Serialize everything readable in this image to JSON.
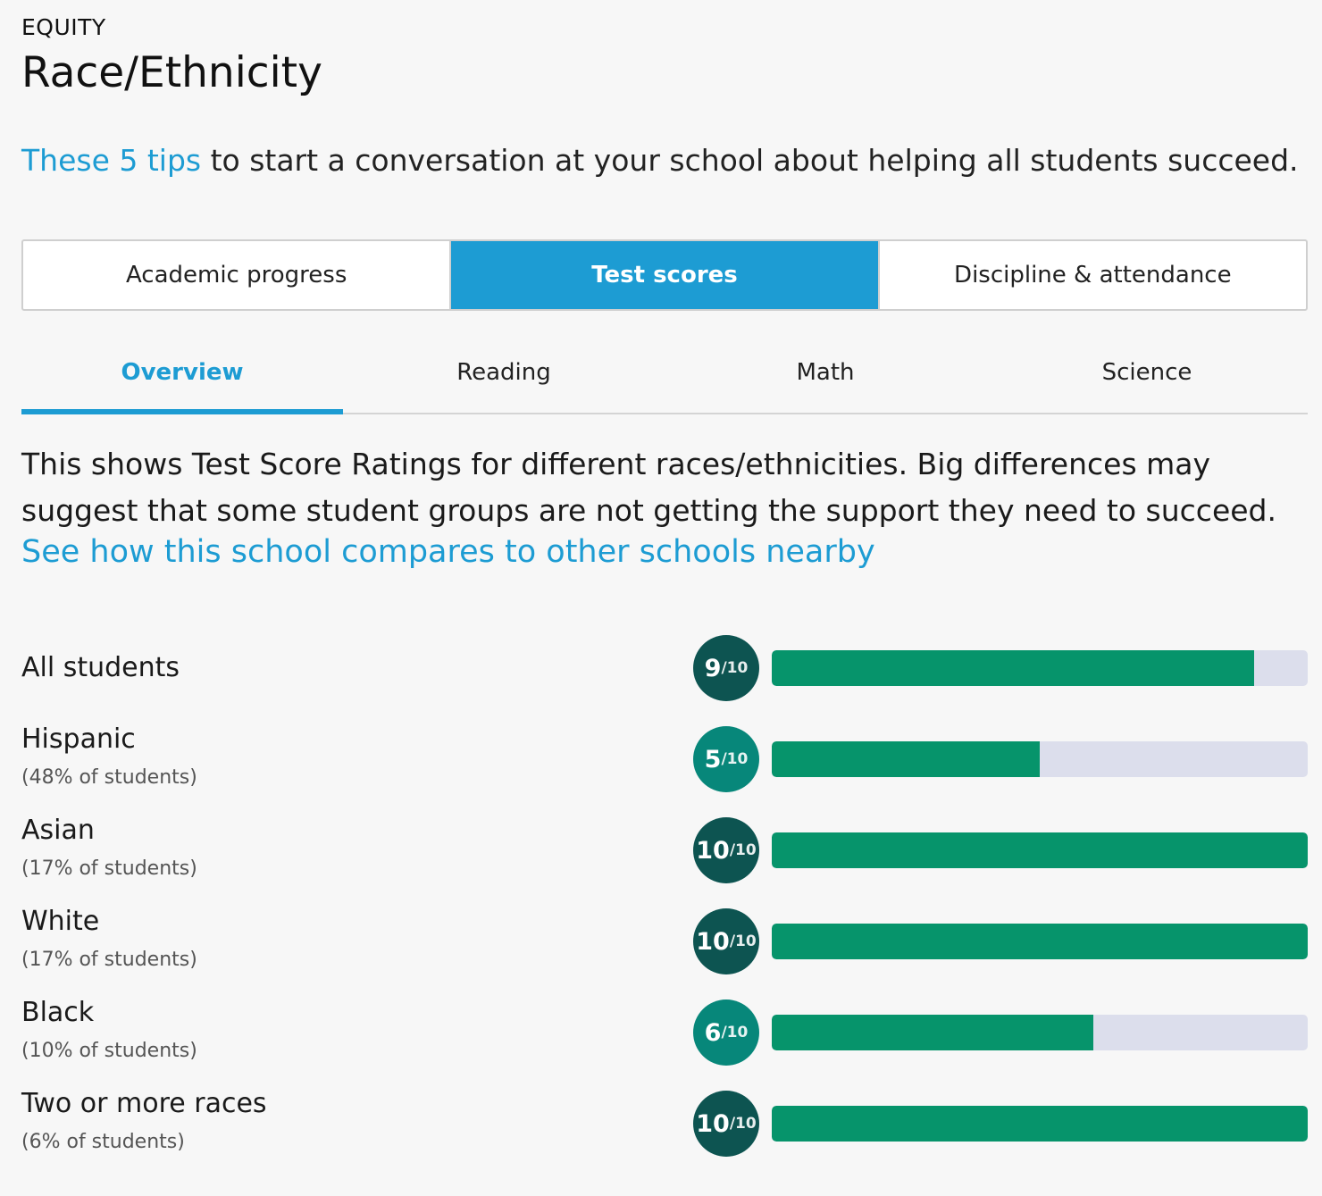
{
  "header": {
    "eyebrow": "EQUITY",
    "title": "Race/Ethnicity"
  },
  "tips": {
    "link_text": "These 5 tips",
    "rest_text": " to start a conversation at your school about helping all students succeed."
  },
  "segments": [
    {
      "label": "Academic progress",
      "active": false
    },
    {
      "label": "Test scores",
      "active": true
    },
    {
      "label": "Discipline & attendance",
      "active": false
    }
  ],
  "subtabs": [
    {
      "label": "Overview",
      "active": true
    },
    {
      "label": "Reading",
      "active": false
    },
    {
      "label": "Math",
      "active": false
    },
    {
      "label": "Science",
      "active": false
    }
  ],
  "description": {
    "text": "This shows Test Score Ratings for different races/ethnicities. Big differences may suggest that some student groups are not getting the support they need to succeed.",
    "link": "See how this school compares to other schools nearby"
  },
  "colors": {
    "accent": "#1d9cd3",
    "bar_fill": "#06946b",
    "bar_track": "#dcdeec",
    "badge_dark": "#0d5451",
    "badge_mid": "#07877a"
  },
  "ratings": [
    {
      "group": "All students",
      "share": "",
      "score": "9",
      "out_of": "/10",
      "fraction": 0.9
    },
    {
      "group": "Hispanic",
      "share": "(48% of students)",
      "score": "5",
      "out_of": "/10",
      "fraction": 0.5
    },
    {
      "group": "Asian",
      "share": "(17% of students)",
      "score": "10",
      "out_of": "/10",
      "fraction": 1.0
    },
    {
      "group": "White",
      "share": "(17% of students)",
      "score": "10",
      "out_of": "/10",
      "fraction": 1.0
    },
    {
      "group": "Black",
      "share": "(10% of students)",
      "score": "6",
      "out_of": "/10",
      "fraction": 0.6
    },
    {
      "group": "Two or more races",
      "share": "(6% of students)",
      "score": "10",
      "out_of": "/10",
      "fraction": 1.0
    }
  ]
}
